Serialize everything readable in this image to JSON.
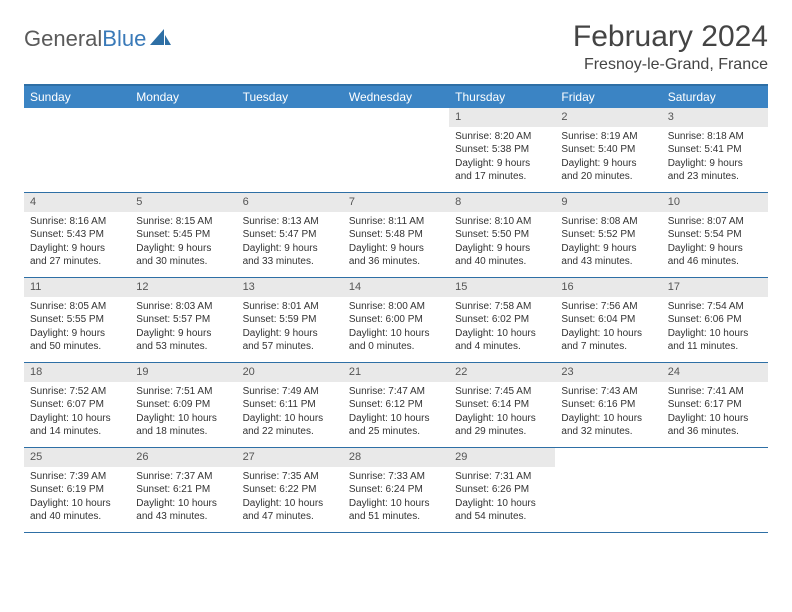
{
  "logo": {
    "part1": "General",
    "part2": "Blue"
  },
  "title": "February 2024",
  "location": "Fresnoy-le-Grand, France",
  "colors": {
    "header_bg": "#3b84c4",
    "border": "#2e6fa5",
    "daynum_bg": "#e9e9e9",
    "text": "#333333",
    "logo_gray": "#5a5a5a",
    "logo_blue": "#3a7ab8"
  },
  "dayNames": [
    "Sunday",
    "Monday",
    "Tuesday",
    "Wednesday",
    "Thursday",
    "Friday",
    "Saturday"
  ],
  "weeks": [
    [
      null,
      null,
      null,
      null,
      {
        "n": "1",
        "sr": "8:20 AM",
        "ss": "5:38 PM",
        "dl": "9 hours and 17 minutes."
      },
      {
        "n": "2",
        "sr": "8:19 AM",
        "ss": "5:40 PM",
        "dl": "9 hours and 20 minutes."
      },
      {
        "n": "3",
        "sr": "8:18 AM",
        "ss": "5:41 PM",
        "dl": "9 hours and 23 minutes."
      }
    ],
    [
      {
        "n": "4",
        "sr": "8:16 AM",
        "ss": "5:43 PM",
        "dl": "9 hours and 27 minutes."
      },
      {
        "n": "5",
        "sr": "8:15 AM",
        "ss": "5:45 PM",
        "dl": "9 hours and 30 minutes."
      },
      {
        "n": "6",
        "sr": "8:13 AM",
        "ss": "5:47 PM",
        "dl": "9 hours and 33 minutes."
      },
      {
        "n": "7",
        "sr": "8:11 AM",
        "ss": "5:48 PM",
        "dl": "9 hours and 36 minutes."
      },
      {
        "n": "8",
        "sr": "8:10 AM",
        "ss": "5:50 PM",
        "dl": "9 hours and 40 minutes."
      },
      {
        "n": "9",
        "sr": "8:08 AM",
        "ss": "5:52 PM",
        "dl": "9 hours and 43 minutes."
      },
      {
        "n": "10",
        "sr": "8:07 AM",
        "ss": "5:54 PM",
        "dl": "9 hours and 46 minutes."
      }
    ],
    [
      {
        "n": "11",
        "sr": "8:05 AM",
        "ss": "5:55 PM",
        "dl": "9 hours and 50 minutes."
      },
      {
        "n": "12",
        "sr": "8:03 AM",
        "ss": "5:57 PM",
        "dl": "9 hours and 53 minutes."
      },
      {
        "n": "13",
        "sr": "8:01 AM",
        "ss": "5:59 PM",
        "dl": "9 hours and 57 minutes."
      },
      {
        "n": "14",
        "sr": "8:00 AM",
        "ss": "6:00 PM",
        "dl": "10 hours and 0 minutes."
      },
      {
        "n": "15",
        "sr": "7:58 AM",
        "ss": "6:02 PM",
        "dl": "10 hours and 4 minutes."
      },
      {
        "n": "16",
        "sr": "7:56 AM",
        "ss": "6:04 PM",
        "dl": "10 hours and 7 minutes."
      },
      {
        "n": "17",
        "sr": "7:54 AM",
        "ss": "6:06 PM",
        "dl": "10 hours and 11 minutes."
      }
    ],
    [
      {
        "n": "18",
        "sr": "7:52 AM",
        "ss": "6:07 PM",
        "dl": "10 hours and 14 minutes."
      },
      {
        "n": "19",
        "sr": "7:51 AM",
        "ss": "6:09 PM",
        "dl": "10 hours and 18 minutes."
      },
      {
        "n": "20",
        "sr": "7:49 AM",
        "ss": "6:11 PM",
        "dl": "10 hours and 22 minutes."
      },
      {
        "n": "21",
        "sr": "7:47 AM",
        "ss": "6:12 PM",
        "dl": "10 hours and 25 minutes."
      },
      {
        "n": "22",
        "sr": "7:45 AM",
        "ss": "6:14 PM",
        "dl": "10 hours and 29 minutes."
      },
      {
        "n": "23",
        "sr": "7:43 AM",
        "ss": "6:16 PM",
        "dl": "10 hours and 32 minutes."
      },
      {
        "n": "24",
        "sr": "7:41 AM",
        "ss": "6:17 PM",
        "dl": "10 hours and 36 minutes."
      }
    ],
    [
      {
        "n": "25",
        "sr": "7:39 AM",
        "ss": "6:19 PM",
        "dl": "10 hours and 40 minutes."
      },
      {
        "n": "26",
        "sr": "7:37 AM",
        "ss": "6:21 PM",
        "dl": "10 hours and 43 minutes."
      },
      {
        "n": "27",
        "sr": "7:35 AM",
        "ss": "6:22 PM",
        "dl": "10 hours and 47 minutes."
      },
      {
        "n": "28",
        "sr": "7:33 AM",
        "ss": "6:24 PM",
        "dl": "10 hours and 51 minutes."
      },
      {
        "n": "29",
        "sr": "7:31 AM",
        "ss": "6:26 PM",
        "dl": "10 hours and 54 minutes."
      },
      null,
      null
    ]
  ]
}
